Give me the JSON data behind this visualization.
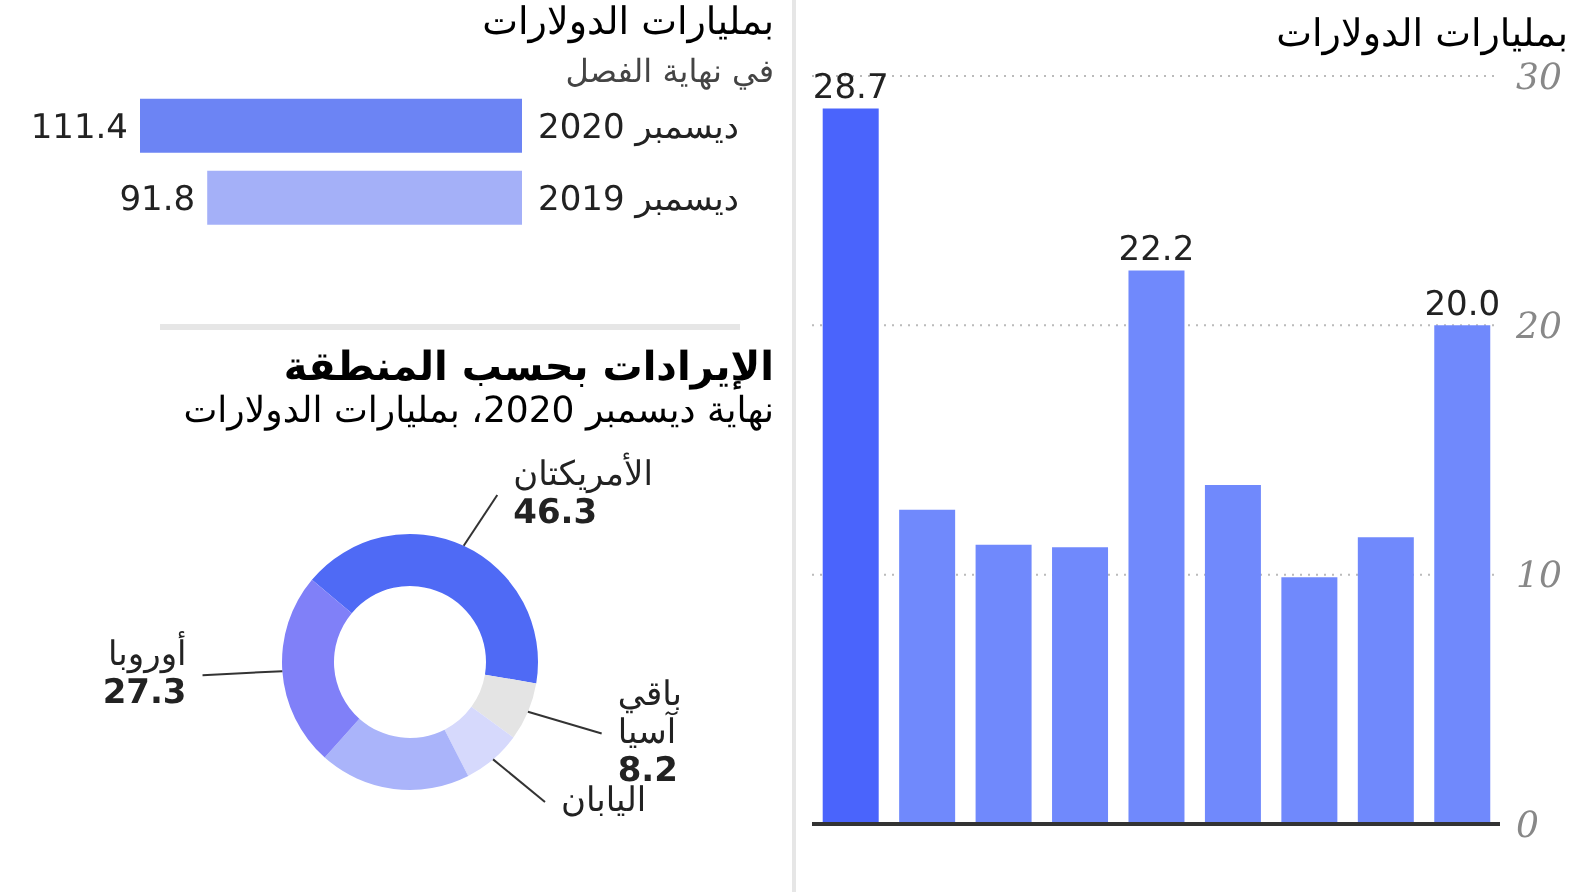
{
  "chart_data": [
    {
      "type": "bar",
      "orientation": "horizontal",
      "subtitle": "بمليارات الدولارات",
      "annotations": [
        "في نهاية الفصل"
      ],
      "categories": [
        "ديسمبر 2020",
        "ديسمبر 2019"
      ],
      "values": [
        111.4,
        91.8
      ],
      "colors": [
        "#6c84f4",
        "#a4b0f8"
      ],
      "data_labels": true
    },
    {
      "type": "donut",
      "title": "الإيرادات بحسب المنطقة",
      "subtitle": "نهاية ديسمبر 2020، بمليارات الدولارات",
      "categories": [
        "الأمريكتان",
        "باقي آسيا",
        "اليابان",
        null,
        "أوروبا"
      ],
      "values": [
        46.3,
        8.2,
        8.3,
        21.3,
        27.3
      ],
      "colors": [
        "#4f6af5",
        "#e4e4e4",
        "#d6d9fc",
        "#aab4fa",
        "#8080f8"
      ],
      "value_labels": [
        "46.3",
        "8.2",
        null,
        null,
        "27.3"
      ]
    },
    {
      "type": "bar",
      "subtitle": "بمليارات الدولارات",
      "categories": [
        null,
        null,
        null,
        null,
        null,
        null,
        null,
        null,
        null
      ],
      "values": [
        28.7,
        12.6,
        11.2,
        11.1,
        22.2,
        13.6,
        9.9,
        11.5,
        20.0
      ],
      "colors": [
        "#4a64fc",
        "#7089fc",
        "#7089fc",
        "#7089fc",
        "#7089fc",
        "#7089fc",
        "#7089fc",
        "#7089fc",
        "#7089fc"
      ],
      "ylim": [
        0,
        30
      ],
      "yticks": [
        0,
        10,
        20,
        30
      ],
      "grid": "y",
      "value_labels": [
        "28.7",
        null,
        null,
        null,
        "22.2",
        null,
        null,
        null,
        "20.0"
      ]
    }
  ]
}
